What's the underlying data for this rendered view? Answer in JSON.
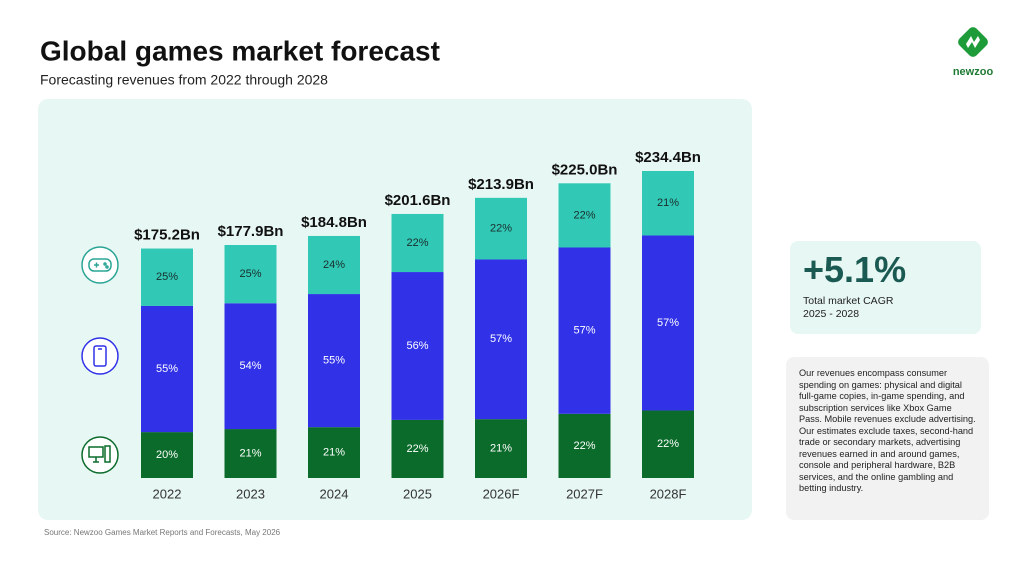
{
  "chart_data": {
    "type": "stacked-bar",
    "title": "Global games market forecast",
    "subtitle": "Forecasting revenues from 2022 through 2028",
    "categories": [
      "2022",
      "2023",
      "2024",
      "2025",
      "2026F",
      "2027F",
      "2028F"
    ],
    "totals": {
      "values": [
        175.2,
        177.9,
        184.8,
        201.6,
        213.9,
        225.0,
        234.4
      ],
      "value_labels": [
        "$175.2Bn",
        "$177.9Bn",
        "$184.8Bn",
        "$201.6Bn",
        "$213.9Bn",
        "$225.0Bn",
        "$234.4Bn"
      ]
    },
    "series": [
      {
        "color": "#0b6b2a",
        "values": [
          20,
          21,
          21,
          22,
          21,
          22,
          22
        ],
        "value_labels": [
          "20%",
          "21%",
          "21%",
          "22%",
          "21%",
          "22%",
          "22%"
        ]
      },
      {
        "color": "#3131e8",
        "values": [
          55,
          54,
          55,
          56,
          57,
          57,
          57
        ],
        "value_labels": [
          "55%",
          "54%",
          "55%",
          "56%",
          "57%",
          "57%",
          "57%"
        ]
      },
      {
        "color": "#31c8b6",
        "values": [
          25,
          25,
          24,
          22,
          22,
          22,
          21
        ],
        "value_labels": [
          "25%",
          "25%",
          "24%",
          "22%",
          "22%",
          "22%",
          "21%"
        ]
      }
    ],
    "source": "Source: Newzoo Games Market Reports and Forecasts, May 2026"
  },
  "logo": "newzoo",
  "cagr": {
    "value": "+5.1%",
    "label": "Total market CAGR",
    "period": "2025 - 2028"
  },
  "note": "Our revenues encompass consumer spending on games: physical and digital full-game copies, in-game spending, and subscription services like Xbox Game Pass. Mobile revenues exclude advertising. Our estimates exclude taxes, second-hand trade or secondary markets, advertising revenues earned in and around games, console and peripheral hardware, B2B services, and the online gambling and betting industry."
}
